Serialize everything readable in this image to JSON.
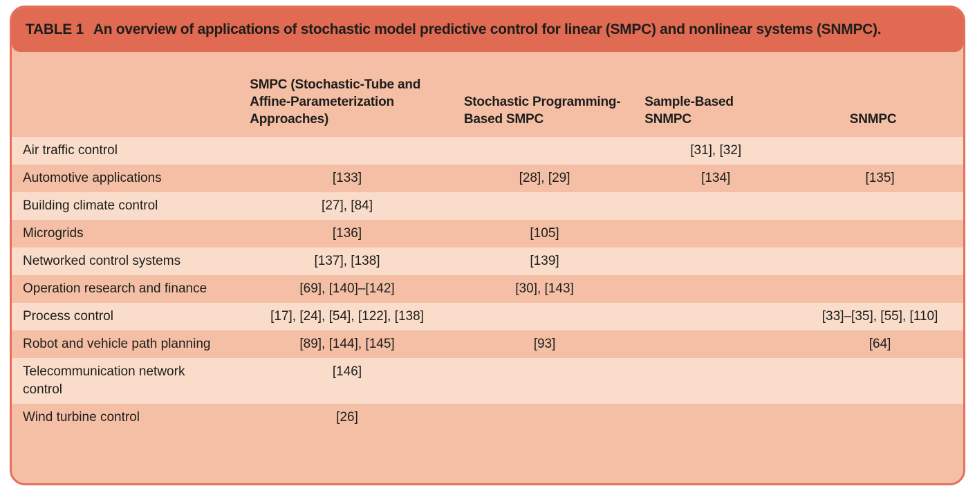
{
  "theme": {
    "title_bar_color": "#e06a52",
    "card_border_color": "#e4705c",
    "row_light_color": "#f9dcca",
    "row_dark_color": "#f4bfa5",
    "text_color": "#1d1d1b"
  },
  "table": {
    "title_label": "TABLE 1",
    "title_text": "An overview of applications of stochastic model predictive control for linear (SMPC) and nonlinear systems (SNMPC).",
    "columns": [
      "",
      "SMPC (Stochastic-Tube and Affine-Parameterization Approaches)",
      "Stochastic Programming-Based SMPC",
      "Sample-Based SNMPC",
      "SNMPC"
    ],
    "rows": [
      {
        "application": "Air traffic control",
        "cells": [
          "",
          "",
          "[31], [32]",
          ""
        ]
      },
      {
        "application": "Automotive applications",
        "cells": [
          "[133]",
          "[28], [29]",
          "[134]",
          "[135]"
        ]
      },
      {
        "application": "Building climate control",
        "cells": [
          "[27], [84]",
          "",
          "",
          ""
        ]
      },
      {
        "application": "Microgrids",
        "cells": [
          "[136]",
          "[105]",
          "",
          ""
        ]
      },
      {
        "application": "Networked control systems",
        "cells": [
          "[137], [138]",
          "[139]",
          "",
          ""
        ]
      },
      {
        "application": "Operation research and finance",
        "cells": [
          "[69], [140]–[142]",
          "[30], [143]",
          "",
          ""
        ]
      },
      {
        "application": "Process control",
        "cells": [
          "[17], [24], [54], [122], [138]",
          "",
          "",
          "[33]–[35], [55], [110]"
        ]
      },
      {
        "application": "Robot and vehicle path planning",
        "cells": [
          "[89], [144], [145]",
          "[93]",
          "",
          "[64]"
        ]
      },
      {
        "application": "Telecommunication network control",
        "cells": [
          "[146]",
          "",
          "",
          ""
        ]
      },
      {
        "application": "Wind turbine control",
        "cells": [
          "[26]",
          "",
          "",
          ""
        ]
      }
    ]
  }
}
